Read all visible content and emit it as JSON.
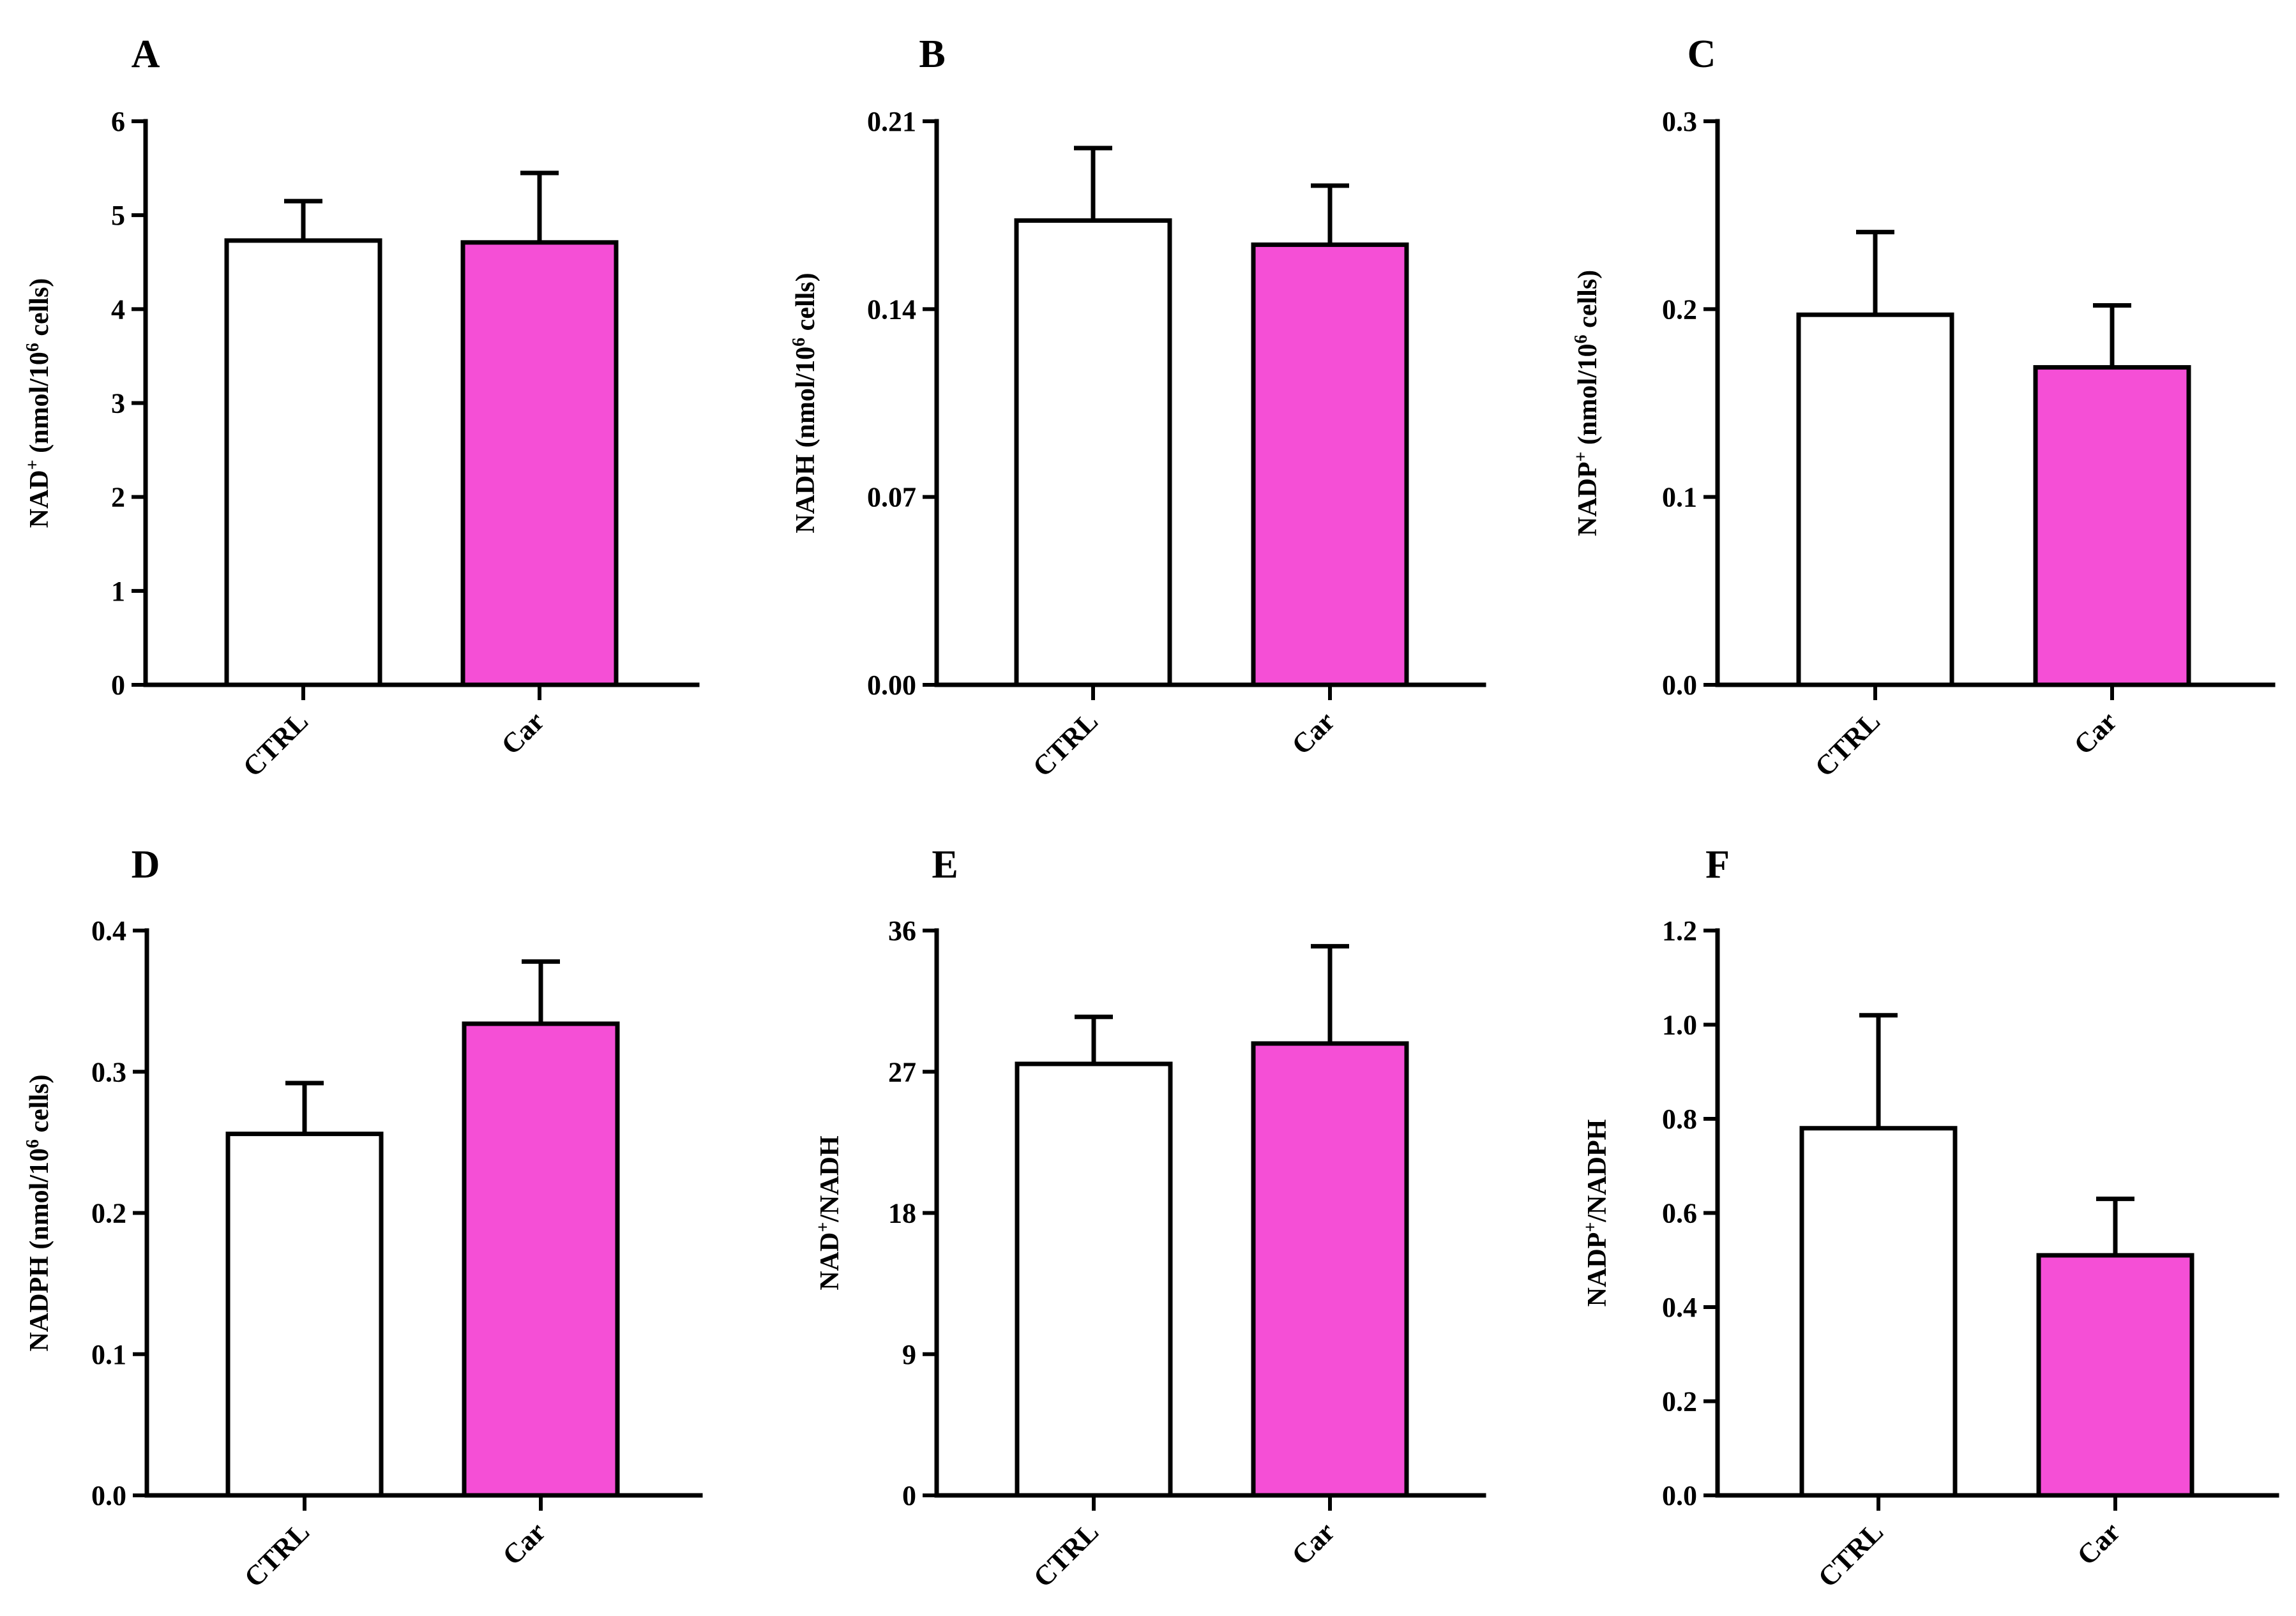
{
  "chart_data": [
    {
      "panel": "A",
      "type": "bar",
      "categories": [
        "CTRL",
        "Car"
      ],
      "values": [
        4.73,
        4.71
      ],
      "errors": [
        0.42,
        0.74
      ],
      "colors": [
        "#ffffff",
        "#f54fd6"
      ],
      "ylabel_parts": [
        {
          "t": "NAD"
        },
        {
          "t": "+",
          "sup": true
        },
        {
          "t": " (nmol/10"
        },
        {
          "t": "6",
          "sup": true
        },
        {
          "t": " cells)"
        }
      ],
      "yticks": [
        "0",
        "1",
        "2",
        "3",
        "4",
        "5",
        "6"
      ],
      "ylim": [
        0,
        6
      ]
    },
    {
      "panel": "B",
      "type": "bar",
      "categories": [
        "CTRL",
        "Car"
      ],
      "values": [
        0.173,
        0.164
      ],
      "errors": [
        0.027,
        0.022
      ],
      "colors": [
        "#ffffff",
        "#f54fd6"
      ],
      "ylabel_parts": [
        {
          "t": "NADH (nmol/10"
        },
        {
          "t": "6",
          "sup": true
        },
        {
          "t": " cells)"
        }
      ],
      "yticks": [
        "0.00",
        "0.07",
        "0.14",
        "0.21"
      ],
      "ylim": [
        0,
        0.21
      ]
    },
    {
      "panel": "C",
      "type": "bar",
      "categories": [
        "CTRL",
        "Car"
      ],
      "values": [
        0.197,
        0.169
      ],
      "errors": [
        0.044,
        0.033
      ],
      "colors": [
        "#ffffff",
        "#f54fd6"
      ],
      "ylabel_parts": [
        {
          "t": "NADP"
        },
        {
          "t": "+",
          "sup": true
        },
        {
          "t": " (nmol/10"
        },
        {
          "t": "6",
          "sup": true
        },
        {
          "t": " cells)"
        }
      ],
      "yticks": [
        "0.0",
        "0.1",
        "0.2",
        "0.3"
      ],
      "ylim": [
        0,
        0.3
      ]
    },
    {
      "panel": "D",
      "type": "bar",
      "categories": [
        "CTRL",
        "Car"
      ],
      "values": [
        0.256,
        0.334
      ],
      "errors": [
        0.036,
        0.044
      ],
      "colors": [
        "#ffffff",
        "#f54fd6"
      ],
      "ylabel_parts": [
        {
          "t": "NADPH (nmol/10"
        },
        {
          "t": "6",
          "sup": true
        },
        {
          "t": " cells)"
        }
      ],
      "yticks": [
        "0.0",
        "0.1",
        "0.2",
        "0.3",
        "0.4"
      ],
      "ylim": [
        0,
        0.4
      ]
    },
    {
      "panel": "E",
      "type": "bar",
      "categories": [
        "CTRL",
        "Car"
      ],
      "values": [
        27.5,
        28.8
      ],
      "errors": [
        3.0,
        6.2
      ],
      "colors": [
        "#ffffff",
        "#f54fd6"
      ],
      "ylabel_parts": [
        {
          "t": "NAD"
        },
        {
          "t": "+",
          "sup": true
        },
        {
          "t": "/NADH"
        }
      ],
      "yticks": [
        "0",
        "9",
        "18",
        "27",
        "36"
      ],
      "ylim": [
        0,
        36
      ]
    },
    {
      "panel": "F",
      "type": "bar",
      "categories": [
        "CTRL",
        "Car"
      ],
      "values": [
        0.78,
        0.51
      ],
      "errors": [
        0.24,
        0.12
      ],
      "colors": [
        "#ffffff",
        "#f54fd6"
      ],
      "ylabel_parts": [
        {
          "t": "NADP"
        },
        {
          "t": "+",
          "sup": true
        },
        {
          "t": "/NADPH"
        }
      ],
      "yticks": [
        "0.0",
        "0.2",
        "0.4",
        "0.6",
        "0.8",
        "1.0",
        "1.2"
      ],
      "ylim": [
        0,
        1.2
      ]
    }
  ]
}
